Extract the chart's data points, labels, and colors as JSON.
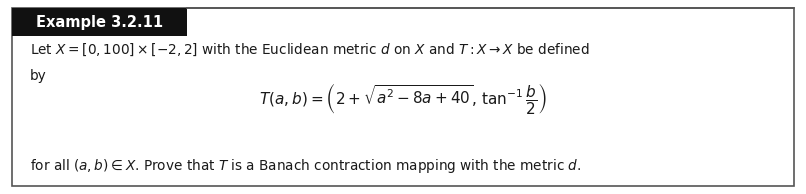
{
  "title": "Example 3.2.11",
  "title_bg": "#111111",
  "title_color": "#ffffff",
  "title_fontsize": 10.5,
  "body_bg": "#ffffff",
  "border_color": "#555555",
  "line1": "Let $X = [0,100] \\times [-2, 2]$ with the Euclidean metric $d$ on $X$ and $T : X \\to X$ be defined",
  "line2": "by",
  "formula": "$T(a, b) = \\left(2 + \\sqrt{a^2 - 8a + 40},\\,\\tan^{-1}\\dfrac{b}{2}\\right)$",
  "line3": "for all $(a, b) \\in X$. Prove that $T$ is a Banach contraction mapping with the metric $d$.",
  "text_fontsize": 9.8,
  "formula_fontsize": 11.0,
  "fig_width": 8.06,
  "fig_height": 1.94,
  "dpi": 100
}
